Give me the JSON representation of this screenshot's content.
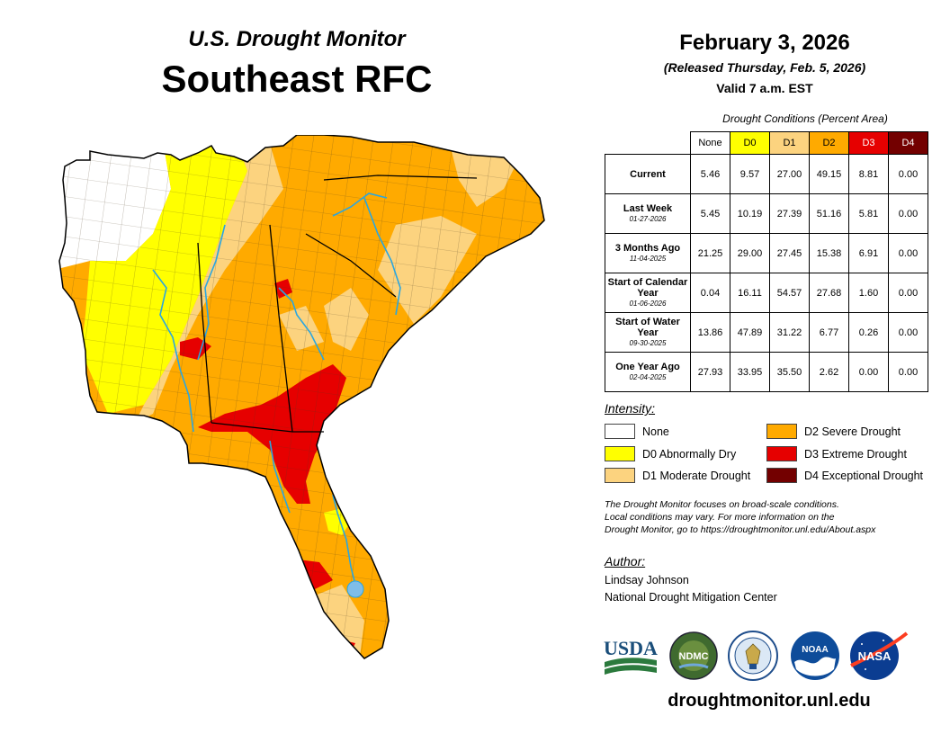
{
  "header": {
    "subtitle": "U.S. Drought Monitor",
    "title": "Southeast RFC",
    "date": "February 3, 2026",
    "released": "(Released Thursday, Feb. 5, 2026)",
    "valid": "Valid 7 a.m. EST"
  },
  "table": {
    "title": "Drought Conditions (Percent Area)",
    "columns": [
      "None",
      "D0",
      "D1",
      "D2",
      "D3",
      "D4"
    ],
    "column_colors": [
      "#ffffff",
      "#ffff00",
      "#fcd37f",
      "#ffaa00",
      "#e60000",
      "#730000"
    ],
    "rows": [
      {
        "label": "Current",
        "date": "",
        "values": [
          "5.46",
          "9.57",
          "27.00",
          "49.15",
          "8.81",
          "0.00"
        ]
      },
      {
        "label": "Last Week",
        "date": "01-27-2026",
        "values": [
          "5.45",
          "10.19",
          "27.39",
          "51.16",
          "5.81",
          "0.00"
        ]
      },
      {
        "label": "3 Months Ago",
        "date": "11-04-2025",
        "values": [
          "21.25",
          "29.00",
          "27.45",
          "15.38",
          "6.91",
          "0.00"
        ]
      },
      {
        "label": "Start of Calendar Year",
        "date": "01-06-2026",
        "values": [
          "0.04",
          "16.11",
          "54.57",
          "27.68",
          "1.60",
          "0.00"
        ]
      },
      {
        "label": "Start of Water Year",
        "date": "09-30-2025",
        "values": [
          "13.86",
          "47.89",
          "31.22",
          "6.77",
          "0.26",
          "0.00"
        ]
      },
      {
        "label": "One Year Ago",
        "date": "02-04-2025",
        "values": [
          "27.93",
          "33.95",
          "35.50",
          "2.62",
          "0.00",
          "0.00"
        ]
      }
    ]
  },
  "legend": {
    "title": "Intensity:",
    "items": [
      {
        "label": "None",
        "color": "#ffffff"
      },
      {
        "label": "D0 Abnormally Dry",
        "color": "#ffff00"
      },
      {
        "label": "D1 Moderate Drought",
        "color": "#fcd37f"
      },
      {
        "label": "D2 Severe Drought",
        "color": "#ffaa00"
      },
      {
        "label": "D3 Extreme Drought",
        "color": "#e60000"
      },
      {
        "label": "D4 Exceptional Drought",
        "color": "#730000"
      }
    ]
  },
  "note": {
    "line1": "The Drought Monitor focuses on broad-scale conditions.",
    "line2": "Local conditions may vary. For more information on the",
    "line3": "Drought Monitor, go to https://droughtmonitor.unl.edu/About.aspx"
  },
  "author": {
    "label": "Author:",
    "name": "Lindsay Johnson",
    "org": "National Drought Mitigation Center"
  },
  "logos": {
    "usda": "USDA",
    "ndmc": "NDMC",
    "noaa": "NOAA",
    "nasa": "NASA"
  },
  "website": "droughtmonitor.unl.edu"
}
